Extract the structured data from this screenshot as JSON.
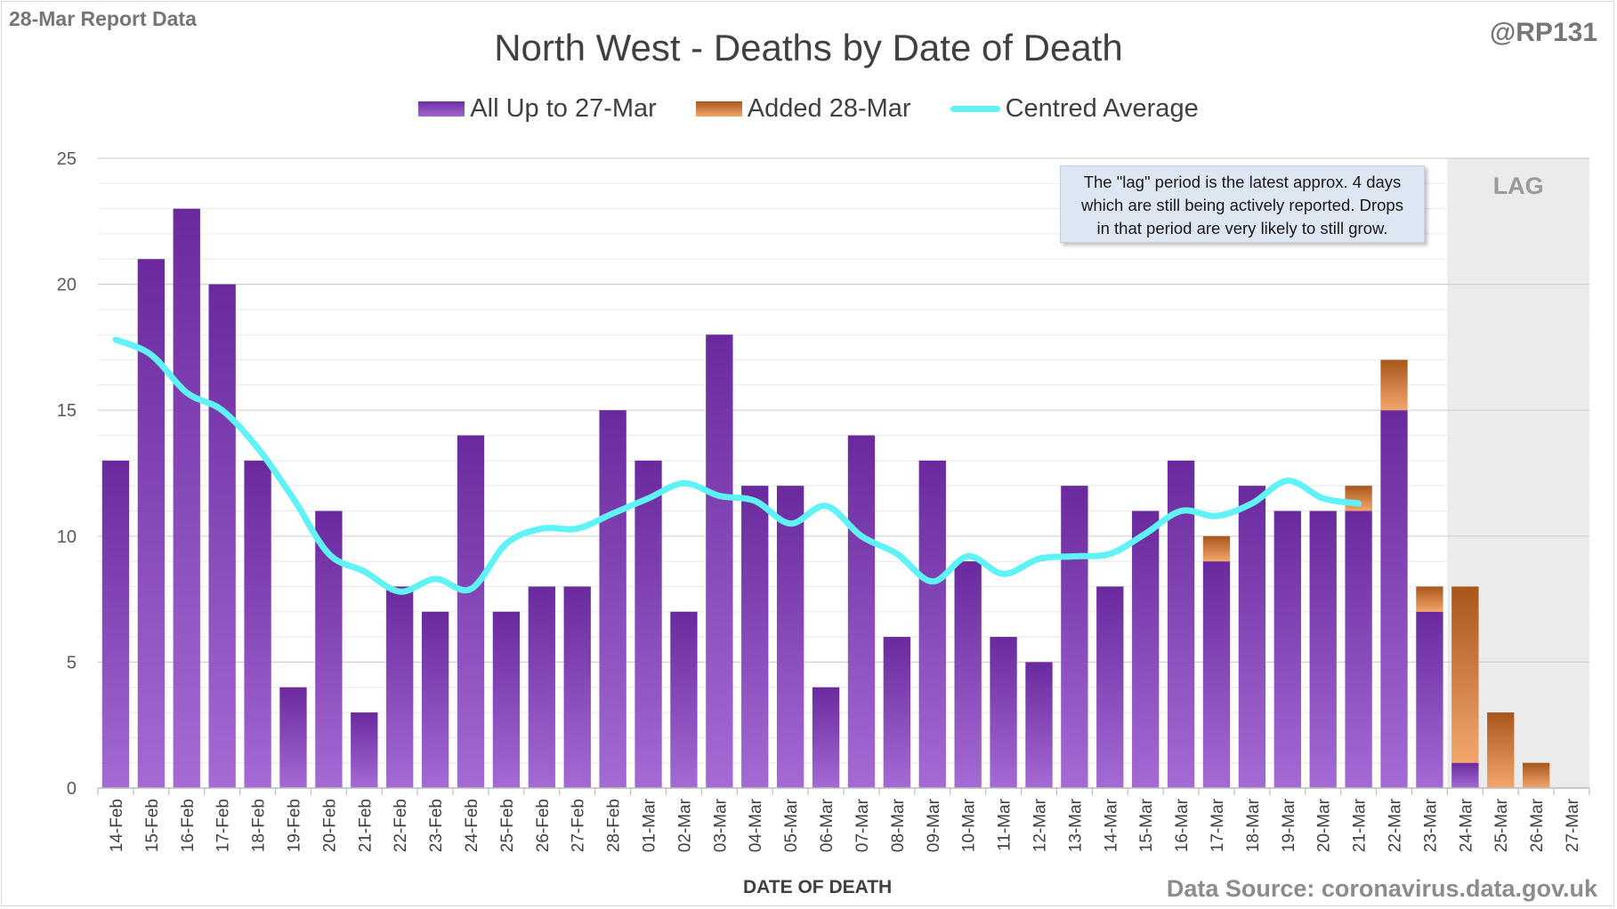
{
  "header": {
    "report_label": "28-Mar Report Data",
    "handle": "@RP131"
  },
  "footer": {
    "source": "Data Source: coronavirus.data.gov.uk"
  },
  "note": {
    "lines": [
      "The \"lag\" period is the latest approx. 4 days",
      "which are still being actively reported.  Drops",
      "in that period are very likely to still grow."
    ]
  },
  "chart_data": {
    "type": "bar",
    "title": "North West - Deaths by Date of Death",
    "xlabel": "DATE OF DEATH",
    "ylabel": "",
    "ylim": [
      0,
      25
    ],
    "yticks": [
      0,
      5,
      10,
      15,
      20,
      25
    ],
    "stacked": true,
    "grid": true,
    "legend_position": "top",
    "lag_label": "LAG",
    "lag_start_index": 38,
    "categories": [
      "14-Feb",
      "15-Feb",
      "16-Feb",
      "17-Feb",
      "18-Feb",
      "19-Feb",
      "20-Feb",
      "21-Feb",
      "22-Feb",
      "23-Feb",
      "24-Feb",
      "25-Feb",
      "26-Feb",
      "27-Feb",
      "28-Feb",
      "01-Mar",
      "02-Mar",
      "03-Mar",
      "04-Mar",
      "05-Mar",
      "06-Mar",
      "07-Mar",
      "08-Mar",
      "09-Mar",
      "10-Mar",
      "11-Mar",
      "12-Mar",
      "13-Mar",
      "14-Mar",
      "15-Mar",
      "16-Mar",
      "17-Mar",
      "18-Mar",
      "19-Mar",
      "20-Mar",
      "21-Mar",
      "22-Mar",
      "23-Mar",
      "24-Mar",
      "25-Mar",
      "26-Mar",
      "27-Mar"
    ],
    "series": [
      {
        "name": "All Up to 27-Mar",
        "kind": "bar",
        "color": "#7a33b5",
        "values": [
          13,
          21,
          23,
          20,
          13,
          4,
          11,
          3,
          8,
          7,
          14,
          7,
          8,
          8,
          15,
          13,
          7,
          18,
          12,
          12,
          4,
          14,
          6,
          13,
          9,
          6,
          5,
          12,
          8,
          11,
          13,
          9,
          12,
          11,
          11,
          11,
          15,
          7,
          1,
          0,
          0,
          0
        ]
      },
      {
        "name": "Added 28-Mar",
        "kind": "bar",
        "color": "#e0782f",
        "values": [
          0,
          0,
          0,
          0,
          0,
          0,
          0,
          0,
          0,
          0,
          0,
          0,
          0,
          0,
          0,
          0,
          0,
          0,
          0,
          0,
          0,
          0,
          0,
          0,
          0,
          0,
          0,
          0,
          0,
          0,
          0,
          1,
          0,
          0,
          0,
          1,
          2,
          1,
          7,
          3,
          1,
          0
        ]
      },
      {
        "name": "Centred Average",
        "kind": "line",
        "color": "#5ff2f7",
        "values": [
          17.8,
          17.2,
          15.7,
          15.0,
          13.5,
          11.5,
          9.3,
          8.6,
          7.8,
          8.3,
          7.9,
          9.7,
          10.3,
          10.3,
          10.9,
          11.5,
          12.1,
          11.6,
          11.4,
          10.5,
          11.2,
          10.0,
          9.3,
          8.2,
          9.2,
          8.5,
          9.1,
          9.2,
          9.3,
          10.1,
          11.0,
          10.8,
          11.3,
          12.2,
          11.5,
          11.3,
          null,
          null,
          null,
          null,
          null,
          null
        ]
      }
    ]
  }
}
